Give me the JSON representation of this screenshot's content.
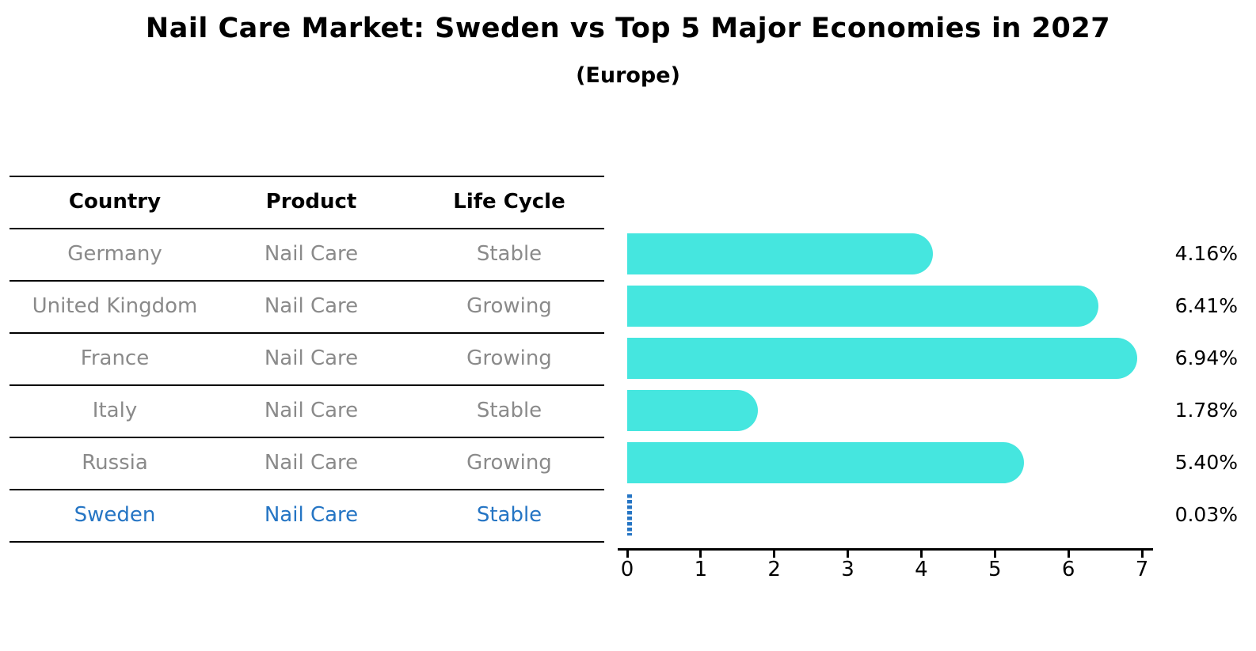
{
  "title": "Nail Care Market: Sweden vs Top 5 Major Economies in 2027",
  "subtitle": "(Europe)",
  "table": {
    "headers": [
      "Country",
      "Product",
      "Life Cycle"
    ],
    "rows": [
      {
        "country": "Germany",
        "product": "Nail Care",
        "life_cycle": "Stable",
        "highlight": false
      },
      {
        "country": "United Kingdom",
        "product": "Nail Care",
        "life_cycle": "Growing",
        "highlight": false
      },
      {
        "country": "France",
        "product": "Nail Care",
        "life_cycle": "Growing",
        "highlight": false
      },
      {
        "country": "Italy",
        "product": "Nail Care",
        "life_cycle": "Stable",
        "highlight": false
      },
      {
        "country": "Russia",
        "product": "Nail Care",
        "life_cycle": "Growing",
        "highlight": false
      },
      {
        "country": "Sweden",
        "product": "Nail Care",
        "life_cycle": "Stable",
        "highlight": true
      }
    ]
  },
  "chart_data": {
    "type": "bar",
    "orientation": "horizontal",
    "title": "Nail Care Market: Sweden vs Top 5 Major Economies in 2027 (Europe)",
    "categories": [
      "Germany",
      "United Kingdom",
      "France",
      "Italy",
      "Russia",
      "Sweden"
    ],
    "values": [
      4.16,
      6.41,
      6.94,
      1.78,
      5.4,
      0.03
    ],
    "value_labels": [
      "4.16%",
      "6.41%",
      "6.94%",
      "1.78%",
      "5.40%",
      "0.03%"
    ],
    "xlim": [
      0,
      7
    ],
    "x_tick_labels": [
      "0",
      "1",
      "2",
      "3",
      "4",
      "5",
      "6",
      "7"
    ],
    "grid": false,
    "legend": false,
    "bar_color": "#45e6df",
    "highlight_color": "#2575c4",
    "highlight_index": 5,
    "highlight_style": "dotted"
  },
  "colors": {
    "background": "#ffffff",
    "bar": "#45e6df",
    "highlight": "#2575c4",
    "table_text": "#8a8a8a",
    "heading_text": "#000000",
    "line": "#000000"
  }
}
